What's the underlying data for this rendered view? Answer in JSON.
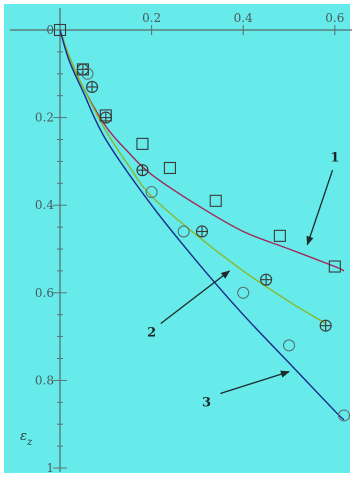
{
  "chart_data": {
    "type": "line",
    "xlim": [
      0,
      0.62
    ],
    "ylim": [
      -1,
      0
    ],
    "x_ticks": [
      "0.2",
      "0.4",
      "0.6"
    ],
    "y_ticks": [
      "0",
      "0.2",
      "0.4",
      "0.6",
      "0.8",
      "1"
    ],
    "ylabel_main": "ε",
    "ylabel_sub": "z",
    "background": "#66eaea",
    "grid": false,
    "series": [
      {
        "label": "1",
        "line_color": "#a02a5a",
        "marker": "square",
        "curve": [
          [
            0,
            0
          ],
          [
            0.02,
            -0.06
          ],
          [
            0.05,
            -0.13
          ],
          [
            0.1,
            -0.22
          ],
          [
            0.15,
            -0.28
          ],
          [
            0.2,
            -0.33
          ],
          [
            0.3,
            -0.4
          ],
          [
            0.4,
            -0.46
          ],
          [
            0.5,
            -0.5
          ],
          [
            0.6,
            -0.54
          ],
          [
            0.62,
            -0.55
          ]
        ],
        "points": [
          [
            0,
            0
          ],
          [
            0.05,
            -0.09
          ],
          [
            0.1,
            -0.195
          ],
          [
            0.18,
            -0.26
          ],
          [
            0.24,
            -0.315
          ],
          [
            0.34,
            -0.39
          ],
          [
            0.48,
            -0.47
          ],
          [
            0.6,
            -0.54
          ]
        ]
      },
      {
        "label": "2",
        "line_color": "#8ab82a",
        "marker": "circle-plus",
        "curve": [
          [
            0,
            0
          ],
          [
            0.02,
            -0.06
          ],
          [
            0.05,
            -0.13
          ],
          [
            0.1,
            -0.23
          ],
          [
            0.15,
            -0.31
          ],
          [
            0.2,
            -0.38
          ],
          [
            0.3,
            -0.47
          ],
          [
            0.4,
            -0.55
          ],
          [
            0.5,
            -0.62
          ],
          [
            0.58,
            -0.67
          ]
        ],
        "points": [
          [
            0.05,
            -0.09
          ],
          [
            0.07,
            -0.13
          ],
          [
            0.1,
            -0.2
          ],
          [
            0.18,
            -0.32
          ],
          [
            0.31,
            -0.46
          ],
          [
            0.45,
            -0.57
          ],
          [
            0.58,
            -0.675
          ]
        ]
      },
      {
        "label": "3",
        "line_color": "#1c2a8a",
        "marker": "circle",
        "curve": [
          [
            0,
            0
          ],
          [
            0.02,
            -0.07
          ],
          [
            0.05,
            -0.14
          ],
          [
            0.1,
            -0.25
          ],
          [
            0.2,
            -0.4
          ],
          [
            0.3,
            -0.53
          ],
          [
            0.4,
            -0.65
          ],
          [
            0.5,
            -0.76
          ],
          [
            0.6,
            -0.87
          ],
          [
            0.62,
            -0.89
          ]
        ],
        "points": [
          [
            0.06,
            -0.1
          ],
          [
            0.2,
            -0.37
          ],
          [
            0.27,
            -0.46
          ],
          [
            0.4,
            -0.6
          ],
          [
            0.5,
            -0.72
          ],
          [
            0.62,
            -0.88
          ]
        ]
      }
    ],
    "annotations": [
      {
        "text": "1",
        "text_at": [
          0.6,
          -0.3
        ],
        "arrow_from": [
          0.595,
          -0.32
        ],
        "arrow_to": [
          0.54,
          -0.49
        ],
        "color": "#1c2a2a"
      },
      {
        "text": "2",
        "text_at": [
          0.2,
          -0.7
        ],
        "arrow_from": [
          0.22,
          -0.67
        ],
        "arrow_to": [
          0.37,
          -0.55
        ],
        "color": "#1c2a2a"
      },
      {
        "text": "3",
        "text_at": [
          0.32,
          -0.86
        ],
        "arrow_from": [
          0.35,
          -0.83
        ],
        "arrow_to": [
          0.5,
          -0.78
        ],
        "color": "#1c2a2a"
      }
    ]
  }
}
